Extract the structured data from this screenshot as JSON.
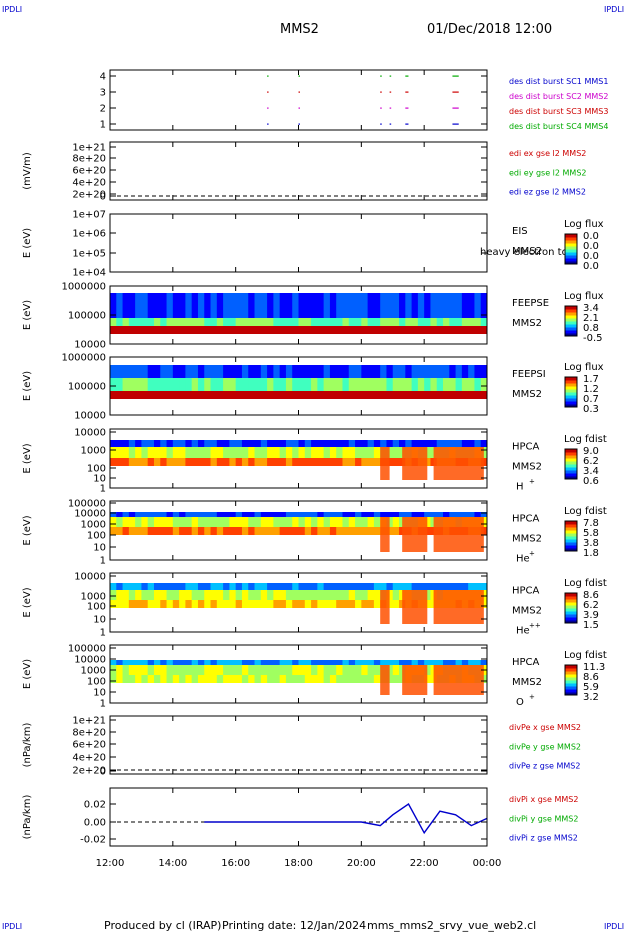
{
  "corner_label": "IPDLI",
  "header": {
    "spacecraft": "MMS2",
    "date": "01/Dec/2018 12:00"
  },
  "footer": {
    "produced": "Produced by cl (IRAP)",
    "printing": "Printing date: 12/Jan/2024",
    "file": "mms_mms2_srvy_vue_web2.cl"
  },
  "x_ticks": [
    "12:00",
    "14:00",
    "16:00",
    "18:00",
    "20:00",
    "22:00",
    "00:00"
  ],
  "panels": [
    {
      "id": "burst",
      "ylabel": "",
      "ticks": [
        "4",
        "3",
        "2",
        "1"
      ],
      "legend": [
        {
          "text": "des dist burst SC1 MMS1",
          "color": "#0000cc"
        },
        {
          "text": "des dist burst SC2 MMS2",
          "color": "#cc00cc"
        },
        {
          "text": "des dist burst SC3 MMS3",
          "color": "#cc0000"
        },
        {
          "text": "des dist burst SC4 MMS4",
          "color": "#00aa00"
        }
      ]
    },
    {
      "id": "edi",
      "ylabel": "(mV/m)",
      "ticks": [
        "1e+21",
        "8e+20",
        "6e+20",
        "4e+20",
        "2e+20",
        "0"
      ],
      "legend": [
        {
          "text": "edi ex gse l2 MMS2",
          "color": "#cc0000"
        },
        {
          "text": "edi ey gse l2 MMS2",
          "color": "#00aa00"
        },
        {
          "text": "edi ez gse l2 MMS2",
          "color": "#0000cc"
        }
      ]
    },
    {
      "id": "eis",
      "ylabel": "E (eV)",
      "ticks": [
        "1e+07",
        "1e+06",
        "1e+05",
        "1e+04"
      ],
      "side": [
        "EIS",
        "MMS2"
      ],
      "overlay": "heavy electron to",
      "cbar_title": "Log flux",
      "cbar": [
        "0.0",
        "0.0",
        "0.0",
        "0.0"
      ]
    },
    {
      "id": "feepse",
      "ylabel": "E (eV)",
      "ticks": [
        "1000000",
        "100000",
        "10000"
      ],
      "side": [
        "FEEPSE",
        "MMS2"
      ],
      "cbar_title": "Log flux",
      "cbar": [
        "3.4",
        "2.1",
        "0.8",
        "-0.5"
      ]
    },
    {
      "id": "feepsi",
      "ylabel": "E (eV)",
      "ticks": [
        "1000000",
        "100000",
        "10000"
      ],
      "side": [
        "FEEPSI",
        "MMS2"
      ],
      "cbar_title": "Log flux",
      "cbar": [
        "1.7",
        "1.2",
        "0.7",
        "0.3"
      ]
    },
    {
      "id": "hpca-h",
      "ylabel": "E (eV)",
      "ticks": [
        "10000",
        "1000",
        "100",
        "10",
        "1"
      ],
      "side": [
        "HPCA",
        "MMS2",
        "H",
        "+"
      ],
      "cbar_title": "Log fdist",
      "cbar": [
        "9.0",
        "6.2",
        "3.4",
        "0.6"
      ]
    },
    {
      "id": "hpca-he",
      "ylabel": "E (eV)",
      "ticks": [
        "100000",
        "10000",
        "1000",
        "100",
        "10",
        "1"
      ],
      "side": [
        "HPCA",
        "MMS2",
        "He",
        "+"
      ],
      "cbar_title": "Log fdist",
      "cbar": [
        "7.8",
        "5.8",
        "3.8",
        "1.8"
      ]
    },
    {
      "id": "hpca-hepp",
      "ylabel": "E (eV)",
      "ticks": [
        "10000",
        "1000",
        "100",
        "10",
        "1"
      ],
      "side": [
        "HPCA",
        "MMS2",
        "He",
        "++"
      ],
      "cbar_title": "Log fdist",
      "cbar": [
        "8.6",
        "6.2",
        "3.9",
        "1.5"
      ]
    },
    {
      "id": "hpca-o",
      "ylabel": "E (eV)",
      "ticks": [
        "100000",
        "10000",
        "1000",
        "100",
        "10",
        "1"
      ],
      "side": [
        "HPCA",
        "MMS2",
        "O",
        "+"
      ],
      "cbar_title": "Log fdist",
      "cbar": [
        "11.3",
        "8.6",
        "5.9",
        "3.2"
      ]
    },
    {
      "id": "divpe",
      "ylabel": "(nPa/km)",
      "ticks": [
        "1e+21",
        "8e+20",
        "6e+20",
        "4e+20",
        "2e+20",
        "0"
      ],
      "legend": [
        {
          "text": "divPe x gse MMS2",
          "color": "#cc0000"
        },
        {
          "text": "divPe y gse MMS2",
          "color": "#00aa00"
        },
        {
          "text": "divPe z gse MMS2",
          "color": "#0000cc"
        }
      ]
    },
    {
      "id": "divpi",
      "ylabel": "(nPa/km)",
      "ticks": [
        "0.02",
        "0.00",
        "-0.02"
      ],
      "legend": [
        {
          "text": "divPi x gse MMS2",
          "color": "#cc0000"
        },
        {
          "text": "divPi y gse MMS2",
          "color": "#00aa00"
        },
        {
          "text": "divPi z gse MMS2",
          "color": "#0000cc"
        }
      ]
    }
  ],
  "chart_data": {
    "type": "heatmap",
    "title": "MMS2",
    "x_range": [
      "01/Dec/2018 12:00",
      "02/Dec/2018 00:00"
    ],
    "xlabel": "",
    "burst_intervals_hours": [
      [
        17.0,
        17.02
      ],
      [
        18.0,
        18.02
      ],
      [
        20.6,
        20.65
      ],
      [
        20.9,
        20.95
      ],
      [
        21.4,
        21.5
      ],
      [
        22.9,
        23.1
      ]
    ],
    "divPi_z_gse": {
      "x": [
        15.0,
        18.0,
        20.0,
        20.6,
        21.0,
        21.5,
        22.0,
        22.5,
        23.0,
        23.5,
        24.0
      ],
      "y": [
        0.0,
        0.0,
        0.0,
        -0.004,
        0.008,
        0.02,
        -0.012,
        0.012,
        0.008,
        -0.004,
        0.004
      ],
      "ylim": [
        -0.03,
        0.03
      ]
    }
  }
}
